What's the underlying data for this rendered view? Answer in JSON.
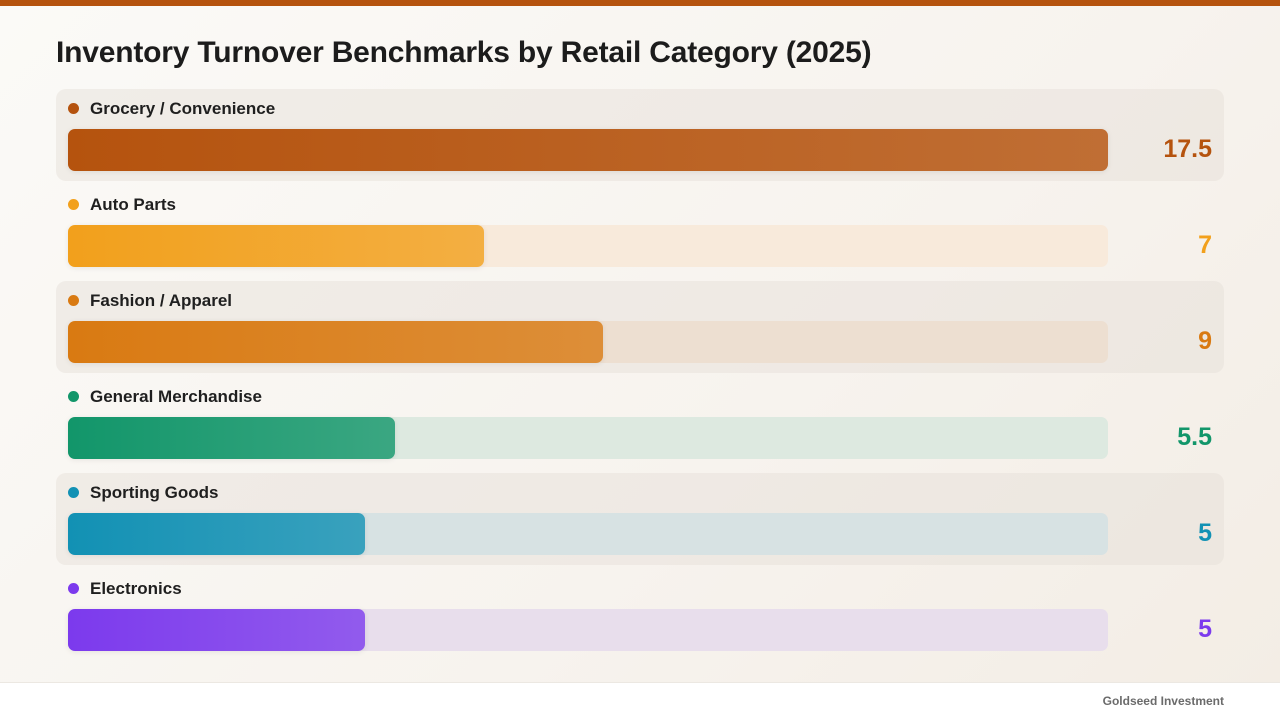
{
  "header": {
    "title": "Inventory Turnover Benchmarks by Retail Category (2025)"
  },
  "footer": {
    "brand": "Goldseed Investment"
  },
  "chart_data": {
    "type": "bar",
    "orientation": "horizontal",
    "title": "Inventory Turnover Benchmarks by Retail Category (2025)",
    "xlim": [
      0,
      17.5
    ],
    "grid": false,
    "categories": [
      "Grocery / Convenience",
      "Auto Parts",
      "Fashion / Apparel",
      "General Merchandise",
      "Sporting Goods",
      "Electronics"
    ],
    "values": [
      17.5,
      7,
      9,
      5.5,
      5,
      5
    ],
    "value_labels": [
      "17.5",
      "7",
      "9",
      "5.5",
      "5",
      "5"
    ],
    "colors": [
      "#b5530e",
      "#f2a01c",
      "#d97a12",
      "#12966a",
      "#1291b4",
      "#7c3aed"
    ],
    "track_colors": [
      "#eadbcc",
      "#f8eadb",
      "#eddfd1",
      "#dde9e0",
      "#d7e2e3",
      "#e8deec"
    ]
  }
}
